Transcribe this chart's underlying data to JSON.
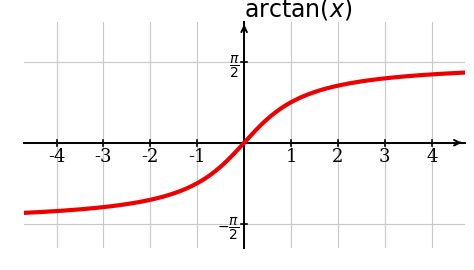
{
  "title": "$\\mathrm{arctan}(x)$",
  "xlim": [
    -4.7,
    4.7
  ],
  "ylim": [
    -2.05,
    2.35
  ],
  "x_ticks": [
    -4,
    -3,
    -2,
    -1,
    1,
    2,
    3,
    4
  ],
  "line_color": "#ee0000",
  "line_width": 3.0,
  "background_color": "#ffffff",
  "grid_color": "#c8c8c8",
  "axis_color": "#000000",
  "title_fontsize": 17,
  "tick_fontsize": 13
}
